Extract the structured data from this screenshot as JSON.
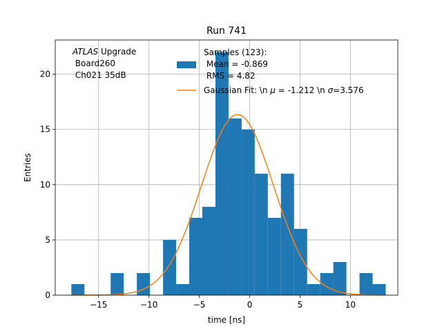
{
  "chart_data": {
    "type": "bar",
    "title": "Run 741",
    "xlabel": "time [ns]",
    "ylabel": "Entries",
    "xlim": [
      -19.3,
      14.7
    ],
    "ylim": [
      0,
      23.1
    ],
    "grid": true,
    "x_ticks": [
      {
        "value": -15,
        "label": "−15"
      },
      {
        "value": -10,
        "label": "−10"
      },
      {
        "value": -5,
        "label": "−5"
      },
      {
        "value": 0,
        "label": "0"
      },
      {
        "value": 5,
        "label": "5"
      },
      {
        "value": 10,
        "label": "10"
      }
    ],
    "y_ticks": [
      {
        "value": 0,
        "label": "0"
      },
      {
        "value": 5,
        "label": "5"
      },
      {
        "value": 10,
        "label": "10"
      },
      {
        "value": 15,
        "label": "15"
      },
      {
        "value": 20,
        "label": "20"
      }
    ],
    "histogram": {
      "bin_edges": [
        -17.7,
        -16.4,
        -15.1,
        -13.8,
        -12.5,
        -11.2,
        -9.9,
        -8.6,
        -7.3,
        -6.0,
        -4.7,
        -3.4,
        -2.1,
        -0.8,
        0.5,
        1.8,
        3.1,
        4.4,
        5.7,
        7.0,
        8.3,
        9.6,
        10.9,
        12.2,
        13.5
      ],
      "counts": [
        1,
        0,
        0,
        2,
        0,
        2,
        0,
        5,
        1,
        7,
        8,
        22,
        16,
        15,
        11,
        7,
        11,
        6,
        1,
        2,
        3,
        0,
        2,
        1
      ],
      "color": "#1f77b4"
    },
    "gaussian_fit": {
      "mu": -1.212,
      "sigma": 3.576,
      "amplitude": 16.35,
      "x_range": [
        -17.7,
        13.3
      ],
      "color": "#ff7f0e"
    },
    "annotation": {
      "atlas": "ATLAS",
      "upgrade": " Upgrade",
      "line2": " Board260",
      "line3": " Ch021 35dB"
    },
    "legend": {
      "position": "upper center",
      "samples_label": [
        "Samples (123):",
        " Mean = -0.869",
        " RMS = 4.82"
      ],
      "fit_label_prefix": "Gaussian Fit: \\n ",
      "fit_mu_symbol": "μ",
      "fit_mu_text": " = -1.212 \\n ",
      "fit_sigma_symbol": "σ",
      "fit_sigma_text": "=3.576"
    }
  }
}
